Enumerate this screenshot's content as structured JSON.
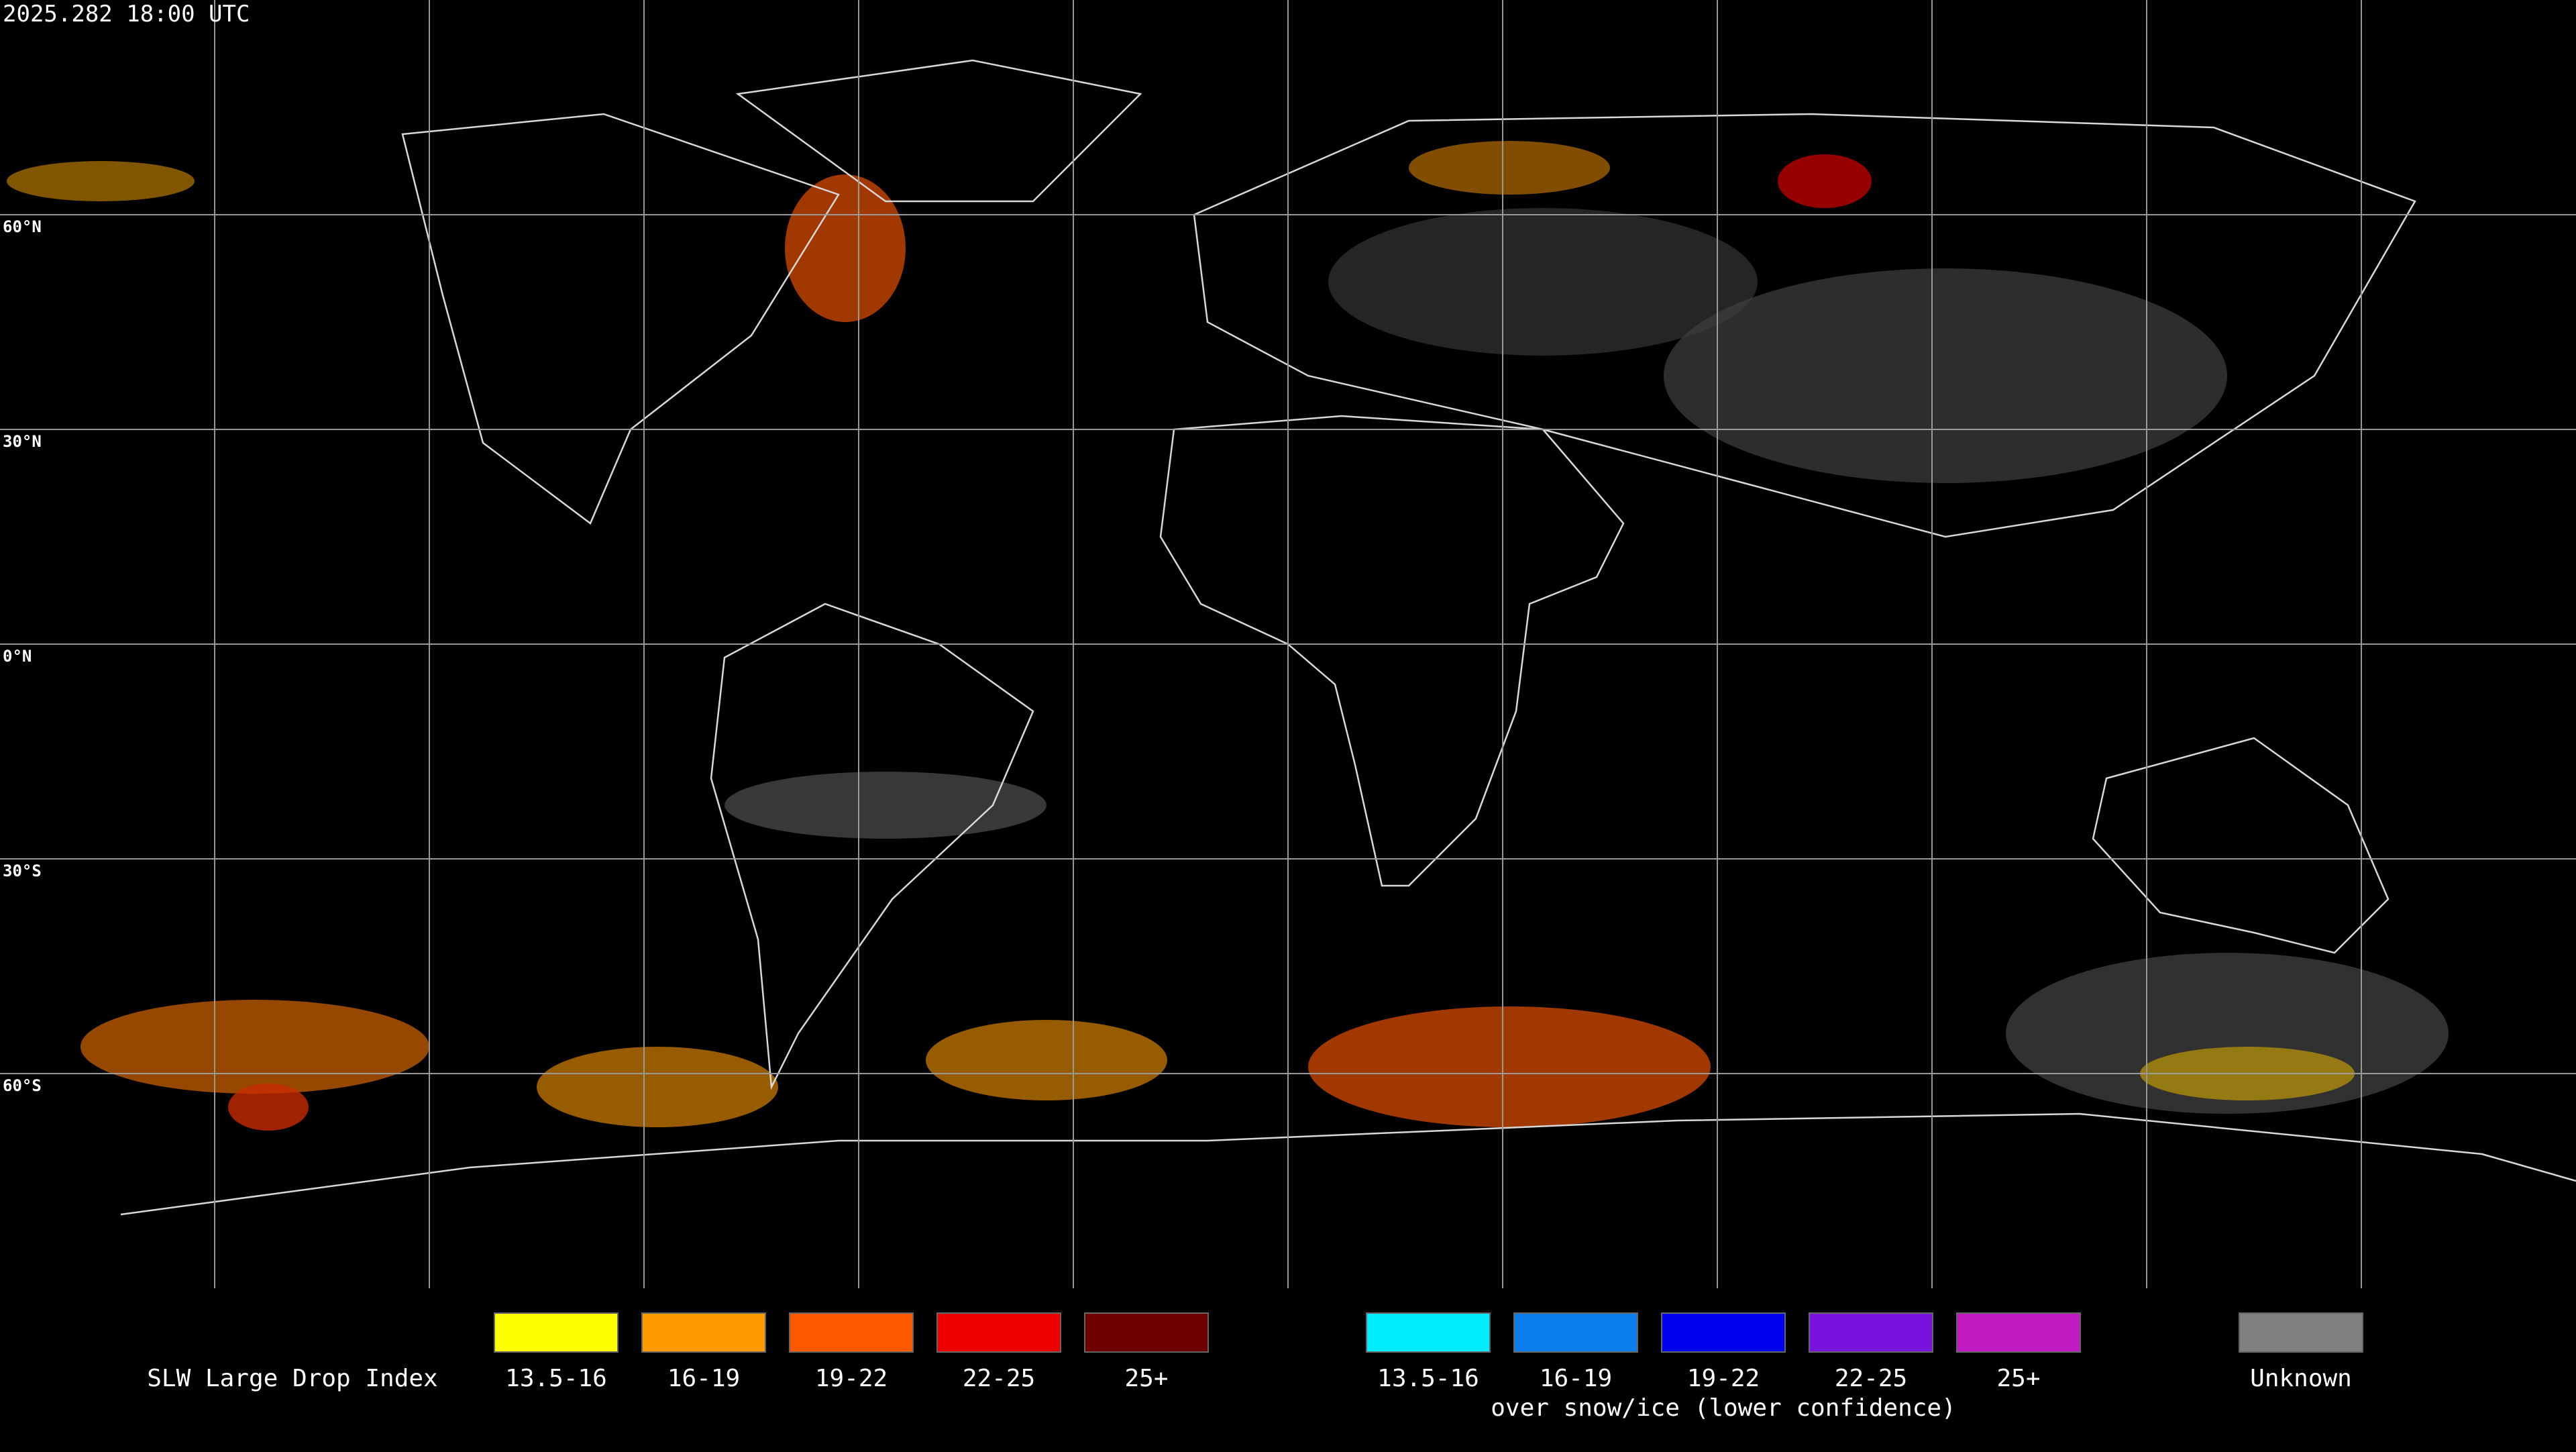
{
  "title": "2025.282 18:00 UTC",
  "latitude_labels": [
    "60°N",
    "30°N",
    "0°N",
    "30°S",
    "60°S"
  ],
  "legend": {
    "title": "SLW Large Drop Index",
    "groups": [
      {
        "items": [
          {
            "label": "13.5-16",
            "color": "#ffff00"
          },
          {
            "label": "16-19",
            "color": "#ff9a00"
          },
          {
            "label": "19-22",
            "color": "#ff5a00"
          },
          {
            "label": "22-25",
            "color": "#ee0000"
          },
          {
            "label": "25+",
            "color": "#6e0000"
          }
        ]
      },
      {
        "items": [
          {
            "label": "13.5-16",
            "color": "#00eeff"
          },
          {
            "label": "16-19",
            "color": "#0a7eea"
          },
          {
            "label": "19-22",
            "color": "#0000ee"
          },
          {
            "label": "22-25",
            "color": "#7a12dd"
          },
          {
            "label": "25+",
            "color": "#c21ac2"
          }
        ],
        "caption": "over snow/ice (lower confidence)"
      }
    ],
    "unknown": {
      "label": "Unknown",
      "color": "#808080"
    }
  }
}
